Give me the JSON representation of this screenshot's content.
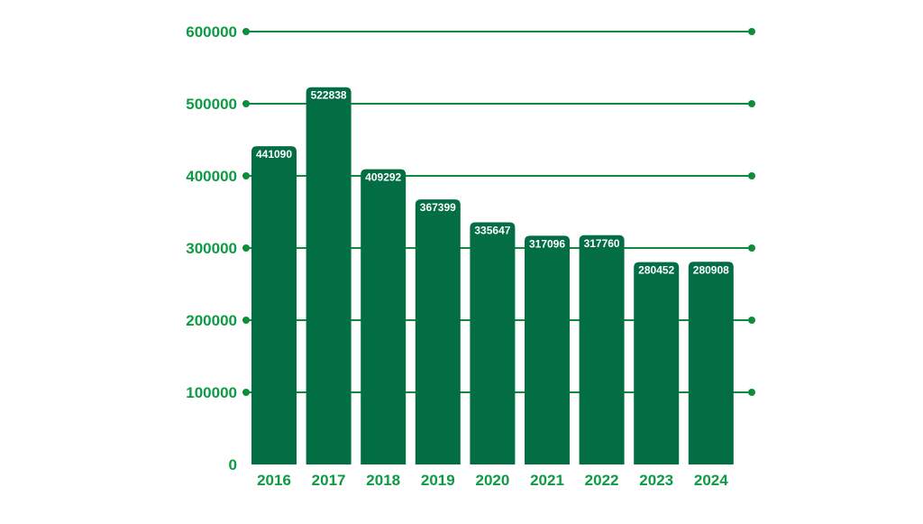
{
  "colors": {
    "bar": "#036d43",
    "text": "#0d9a45",
    "grid": "#0d8c3e",
    "value_label": "#ffffff"
  },
  "chart_data": {
    "type": "bar",
    "title": "",
    "xlabel": "",
    "ylabel": "",
    "categories": [
      "2016",
      "2017",
      "2018",
      "2019",
      "2020",
      "2021",
      "2022",
      "2023",
      "2024"
    ],
    "values": [
      441090,
      522838,
      409292,
      367399,
      335647,
      317096,
      317760,
      280452,
      280908
    ],
    "value_labels": [
      "441090",
      "522838",
      "409292",
      "367399",
      "335647",
      "317096",
      "317760",
      "280452",
      "280908"
    ],
    "ylim": [
      0,
      600000
    ],
    "yticks": [
      0,
      100000,
      200000,
      300000,
      400000,
      500000,
      600000
    ],
    "ytick_labels": [
      "0",
      "100000",
      "200000",
      "300000",
      "400000",
      "500000",
      "600000"
    ],
    "grid": true,
    "legend": "none"
  }
}
